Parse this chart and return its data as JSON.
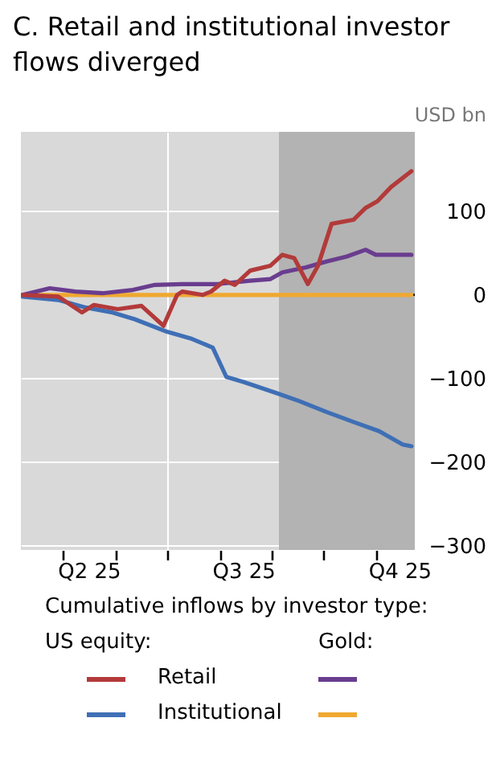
{
  "chart_data": {
    "type": "line",
    "title": "C. Retail and institutional investor flows diverged",
    "ylabel": "USD bn",
    "legend_title": "Cumulative inflows by investor type:",
    "annotations": [
      "US equity:",
      "Gold:"
    ],
    "xlim": [
      "2025-04-06",
      "2025-11-24"
    ],
    "xticks": [
      {
        "value": "2025-05-01",
        "label": null
      },
      {
        "value": "2025-05-16",
        "label": "Q2 25"
      },
      {
        "value": "2025-06-01",
        "label": null
      },
      {
        "value": "2025-07-01",
        "label": null
      },
      {
        "value": "2025-08-01",
        "label": null
      },
      {
        "value": "2025-08-15",
        "label": "Q3 25"
      },
      {
        "value": "2025-09-01",
        "label": null
      },
      {
        "value": "2025-10-01",
        "label": null
      },
      {
        "value": "2025-11-01",
        "label": null
      },
      {
        "value": "2025-11-15",
        "label": "Q4 25"
      }
    ],
    "ylim": [
      -305,
      195
    ],
    "yticks": [
      {
        "value": -300,
        "label": "−300"
      },
      {
        "value": -200,
        "label": "−200"
      },
      {
        "value": -100,
        "label": "−100"
      },
      0,
      100
    ],
    "grid": true,
    "legend": "bottom",
    "line_style": "solid",
    "bands": [
      {
        "axis": "x",
        "from": "2025-09-05",
        "to": "2025-11-24",
        "color": "#b3b3b3"
      }
    ],
    "ref_lines": [
      {
        "axis": "y",
        "value": 0,
        "color": "#000000"
      }
    ],
    "series": [
      {
        "name": "Retail",
        "color": "#b33a3a",
        "x": [
          "2025-04-07",
          "2025-04-28",
          "2025-05-12",
          "2025-05-19",
          "2025-06-02",
          "2025-06-16",
          "2025-06-29",
          "2025-07-07",
          "2025-07-10",
          "2025-07-22",
          "2025-07-27",
          "2025-08-04",
          "2025-08-10",
          "2025-08-19",
          "2025-08-31",
          "2025-09-07",
          "2025-09-14",
          "2025-09-22",
          "2025-09-28",
          "2025-10-06",
          "2025-10-19",
          "2025-10-26",
          "2025-11-02",
          "2025-11-10",
          "2025-11-22"
        ],
        "values": [
          0,
          -2,
          -21,
          -12,
          -17,
          -13,
          -37,
          0,
          4,
          0,
          4,
          17,
          12,
          29,
          35,
          48,
          44,
          13,
          35,
          85,
          90,
          104,
          112,
          129,
          148
        ]
      },
      {
        "name": "Institutional",
        "color": "#3f6fb5",
        "x": [
          "2025-04-07",
          "2025-04-28",
          "2025-05-14",
          "2025-05-30",
          "2025-06-12",
          "2025-07-01",
          "2025-07-08",
          "2025-07-15",
          "2025-07-28",
          "2025-08-05",
          "2025-08-15",
          "2025-09-03",
          "2025-09-17",
          "2025-10-03",
          "2025-10-19",
          "2025-11-03",
          "2025-11-17",
          "2025-11-22"
        ],
        "values": [
          -2,
          -6,
          -15,
          -21,
          -29,
          -44,
          -48,
          -52,
          -63,
          -98,
          -104,
          -117,
          -127,
          -140,
          -152,
          -163,
          -179,
          -181
        ]
      },
      {
        "color": "#6a3d8f",
        "x": [
          "2025-04-07",
          "2025-04-23",
          "2025-05-08",
          "2025-05-24",
          "2025-06-11",
          "2025-06-24",
          "2025-07-10",
          "2025-07-31",
          "2025-08-19",
          "2025-08-31",
          "2025-09-07",
          "2025-09-21",
          "2025-10-03",
          "2025-10-15",
          "2025-10-26",
          "2025-11-01",
          "2025-11-10",
          "2025-11-22"
        ],
        "values": [
          0,
          8,
          4,
          2,
          6,
          12,
          13,
          13,
          17,
          19,
          27,
          33,
          40,
          46,
          54,
          48,
          48,
          48
        ]
      },
      {
        "color": "#f0a830",
        "x": [
          "2025-04-07",
          "2025-11-22"
        ],
        "values": [
          0,
          0
        ]
      }
    ]
  }
}
